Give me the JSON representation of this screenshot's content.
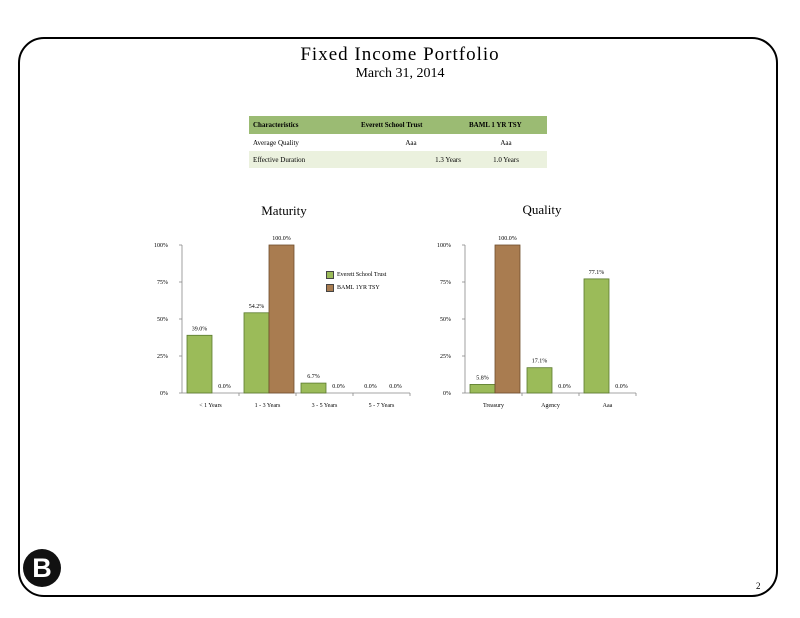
{
  "header": {
    "title": "Fixed Income Portfolio",
    "subtitle": "March 31, 2014"
  },
  "characteristics_table": {
    "headers": [
      "Characteristics",
      "Everett School Trust",
      "BAML 1 YR TSY"
    ],
    "rows": [
      [
        "Average Quality",
        "Aaa",
        "Aaa"
      ],
      [
        "Effective Duration",
        "1.3 Years",
        "1.0 Years"
      ]
    ]
  },
  "legend": {
    "series_1": "Everett School Trust",
    "series_2": "BAML 1YR TSY"
  },
  "colors": {
    "series_1": "#9bbb59",
    "series_2": "#a97c50",
    "table_header": "#9bbb73"
  },
  "logo": {
    "letter": "B"
  },
  "page_number": "2",
  "chart_data": [
    {
      "type": "bar",
      "title": "Maturity",
      "categories": [
        "< 1 Years",
        "1 - 3 Years",
        "3 - 5 Years",
        "5 - 7 Years"
      ],
      "series": [
        {
          "name": "Everett School Trust",
          "values": [
            39.0,
            54.2,
            6.7,
            0.0
          ],
          "labels": [
            "39.0%",
            "54.2%",
            "6.7%",
            "0.0%"
          ]
        },
        {
          "name": "BAML 1YR TSY",
          "values": [
            0.0,
            100.0,
            0.0,
            0.0
          ],
          "labels": [
            "0.0%",
            "100.0%",
            "0.0%",
            "0.0%"
          ]
        }
      ],
      "yticks": [
        "0%",
        "25%",
        "50%",
        "75%",
        "100%"
      ],
      "ylim": [
        0,
        100
      ],
      "legend_position": "right",
      "grid": false
    },
    {
      "type": "bar",
      "title": "Quality",
      "categories": [
        "Treasury",
        "Agency",
        "Aaa"
      ],
      "series": [
        {
          "name": "Everett School Trust",
          "values": [
            5.8,
            17.1,
            77.1
          ],
          "labels": [
            "5.8%",
            "17.1%",
            "77.1%"
          ]
        },
        {
          "name": "BAML 1YR TSY",
          "values": [
            100.0,
            0.0,
            0.0
          ],
          "labels": [
            "100.0%",
            "0.0%",
            "0.0%"
          ]
        }
      ],
      "yticks": [
        "0%",
        "25%",
        "50%",
        "75%",
        "100%"
      ],
      "ylim": [
        0,
        100
      ],
      "grid": false
    }
  ]
}
